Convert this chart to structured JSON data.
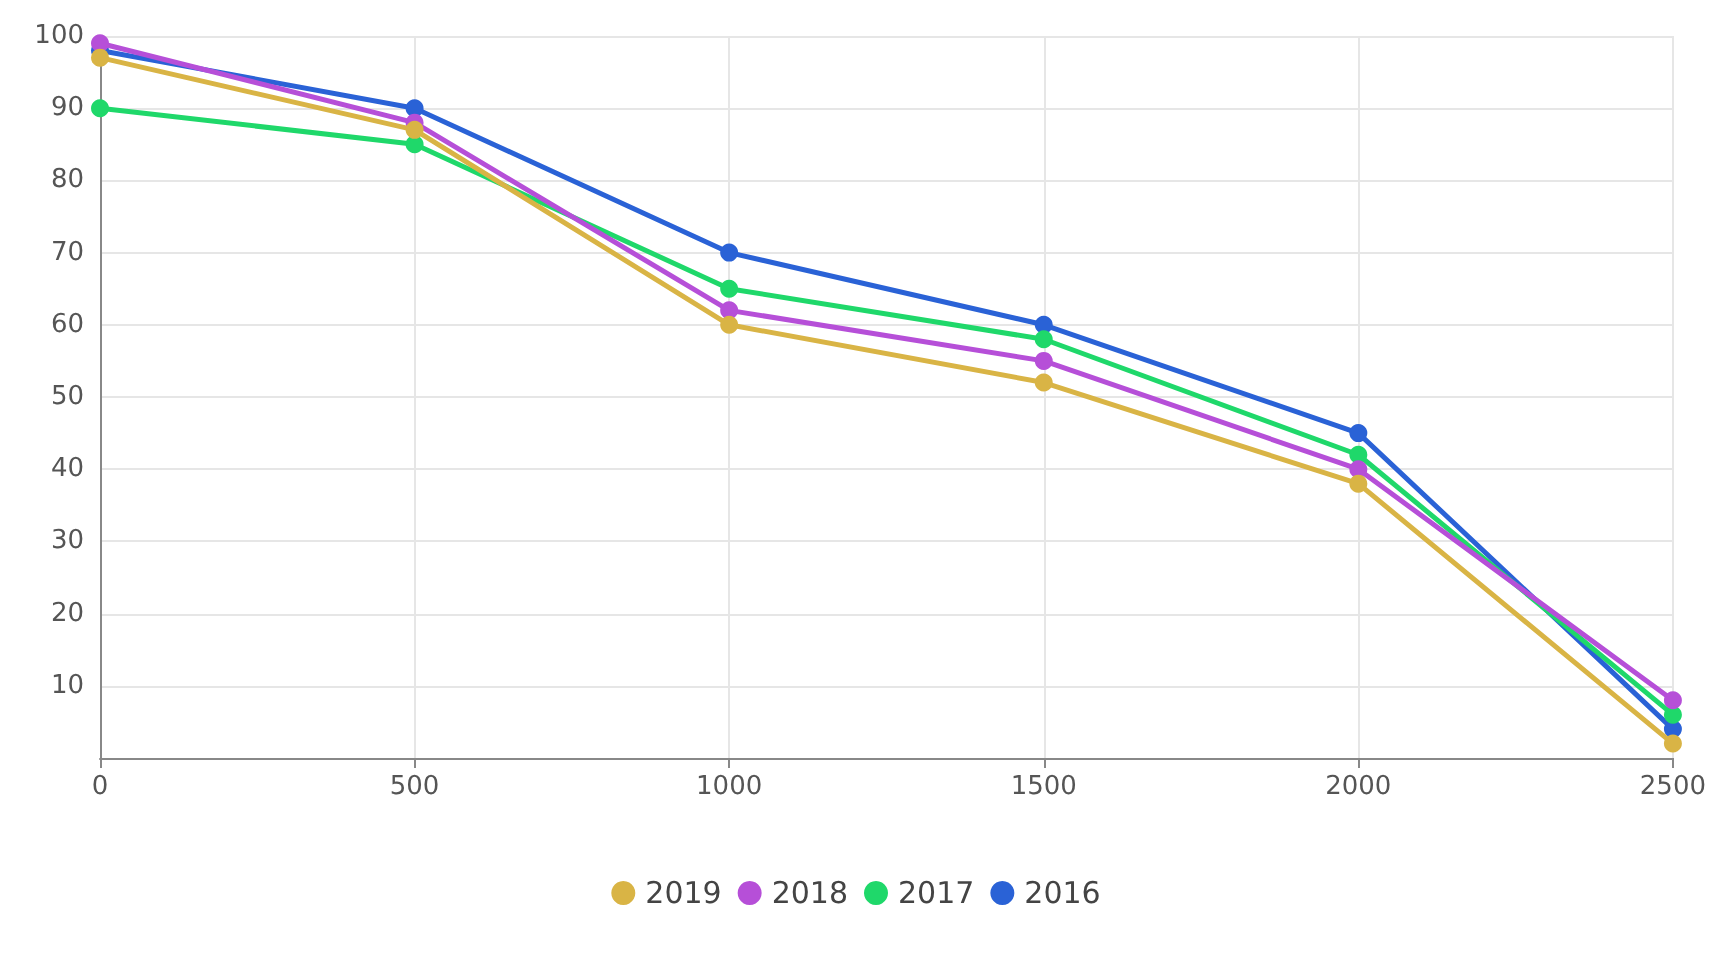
{
  "chart_data": {
    "type": "line",
    "x": [
      0,
      500,
      1000,
      1500,
      2000,
      2500
    ],
    "series": [
      {
        "name": "2019",
        "color": "#d9b445",
        "values": [
          97,
          87,
          60,
          52,
          38,
          2
        ]
      },
      {
        "name": "2018",
        "color": "#b64fd8",
        "values": [
          99,
          88,
          62,
          55,
          40,
          8
        ]
      },
      {
        "name": "2017",
        "color": "#1fd86a",
        "values": [
          90,
          85,
          65,
          58,
          42,
          6
        ]
      },
      {
        "name": "2016",
        "color": "#2a62d6",
        "values": [
          98,
          90,
          70,
          60,
          45,
          4
        ]
      }
    ],
    "xlim": [
      0,
      2500
    ],
    "xticks": [
      0,
      500,
      1000,
      1500,
      2000,
      2500
    ],
    "ylim": [
      0,
      100
    ],
    "yticks": [
      10,
      20,
      30,
      40,
      50,
      60,
      70,
      80,
      90,
      100
    ],
    "grid": true,
    "legend": "bottom",
    "marker": "circle",
    "line_style": "solid"
  }
}
